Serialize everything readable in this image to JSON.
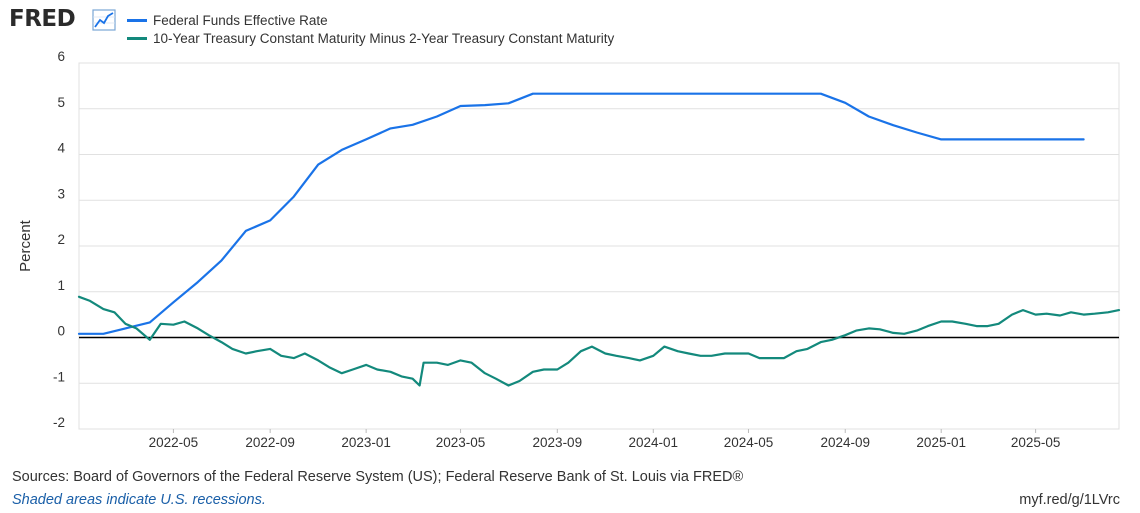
{
  "header": {
    "logo_text": "FRED",
    "logo_icon": "line-chart-icon"
  },
  "legend": [
    {
      "label": "Federal Funds Effective Rate",
      "color": "#1a73e8"
    },
    {
      "label": "10-Year Treasury Constant Maturity Minus 2-Year Treasury Constant Maturity",
      "color": "#13897c"
    }
  ],
  "chart_data": {
    "type": "line",
    "title": "",
    "xlabel": "",
    "ylabel": "Percent",
    "ylim": [
      -2,
      6
    ],
    "yticks": [
      -2,
      -1,
      0,
      1,
      2,
      3,
      4,
      5,
      6
    ],
    "xlim": [
      "2022-01-01",
      "2025-08-15"
    ],
    "xtick_labels": [
      "2022-05",
      "2022-09",
      "2023-01",
      "2023-05",
      "2023-09",
      "2024-01",
      "2024-05",
      "2024-09",
      "2025-01",
      "2025-05"
    ],
    "grid": true,
    "zero_line": true,
    "series": [
      {
        "name": "Federal Funds Effective Rate",
        "color": "#1a73e8",
        "x": [
          "2022-01",
          "2022-02",
          "2022-03",
          "2022-04",
          "2022-05",
          "2022-06",
          "2022-07",
          "2022-08",
          "2022-09",
          "2022-10",
          "2022-11",
          "2022-12",
          "2023-01",
          "2023-02",
          "2023-03",
          "2023-04",
          "2023-05",
          "2023-06",
          "2023-07",
          "2023-08",
          "2023-09",
          "2023-10",
          "2023-11",
          "2023-12",
          "2024-01",
          "2024-02",
          "2024-03",
          "2024-04",
          "2024-05",
          "2024-06",
          "2024-07",
          "2024-08",
          "2024-09",
          "2024-10",
          "2024-11",
          "2024-12",
          "2025-01",
          "2025-02",
          "2025-03",
          "2025-04",
          "2025-05",
          "2025-06",
          "2025-07"
        ],
        "values": [
          0.08,
          0.08,
          0.2,
          0.33,
          0.77,
          1.21,
          1.68,
          2.33,
          2.56,
          3.08,
          3.78,
          4.1,
          4.33,
          4.57,
          4.65,
          4.83,
          5.06,
          5.08,
          5.12,
          5.33,
          5.33,
          5.33,
          5.33,
          5.33,
          5.33,
          5.33,
          5.33,
          5.33,
          5.33,
          5.33,
          5.33,
          5.33,
          5.13,
          4.83,
          4.64,
          4.48,
          4.33,
          4.33,
          4.33,
          4.33,
          4.33,
          4.33,
          4.33
        ]
      },
      {
        "name": "10-Year Treasury Constant Maturity Minus 2-Year Treasury Constant Maturity",
        "color": "#13897c",
        "x": [
          "2022-01-01",
          "2022-01-15",
          "2022-02-01",
          "2022-02-15",
          "2022-03-01",
          "2022-03-15",
          "2022-04-01",
          "2022-04-15",
          "2022-05-01",
          "2022-05-15",
          "2022-06-01",
          "2022-06-15",
          "2022-07-01",
          "2022-07-15",
          "2022-08-01",
          "2022-08-15",
          "2022-09-01",
          "2022-09-15",
          "2022-10-01",
          "2022-10-15",
          "2022-11-01",
          "2022-11-15",
          "2022-12-01",
          "2022-12-15",
          "2023-01-01",
          "2023-01-15",
          "2023-02-01",
          "2023-02-15",
          "2023-03-01",
          "2023-03-10",
          "2023-03-15",
          "2023-04-01",
          "2023-04-15",
          "2023-05-01",
          "2023-05-15",
          "2023-06-01",
          "2023-06-15",
          "2023-07-01",
          "2023-07-15",
          "2023-08-01",
          "2023-08-15",
          "2023-09-01",
          "2023-09-15",
          "2023-10-01",
          "2023-10-15",
          "2023-11-01",
          "2023-11-15",
          "2023-12-01",
          "2023-12-15",
          "2024-01-01",
          "2024-01-15",
          "2024-02-01",
          "2024-02-15",
          "2024-03-01",
          "2024-03-15",
          "2024-04-01",
          "2024-04-15",
          "2024-05-01",
          "2024-05-15",
          "2024-06-01",
          "2024-06-15",
          "2024-07-01",
          "2024-07-15",
          "2024-08-01",
          "2024-08-15",
          "2024-09-01",
          "2024-09-15",
          "2024-10-01",
          "2024-10-15",
          "2024-11-01",
          "2024-11-15",
          "2024-12-01",
          "2024-12-15",
          "2025-01-01",
          "2025-01-15",
          "2025-02-01",
          "2025-02-15",
          "2025-03-01",
          "2025-03-15",
          "2025-04-01",
          "2025-04-15",
          "2025-05-01",
          "2025-05-15",
          "2025-06-01",
          "2025-06-15",
          "2025-07-01",
          "2025-07-15",
          "2025-08-01",
          "2025-08-15"
        ],
        "values": [
          0.89,
          0.8,
          0.62,
          0.55,
          0.3,
          0.2,
          -0.05,
          0.3,
          0.28,
          0.35,
          0.2,
          0.05,
          -0.1,
          -0.25,
          -0.35,
          -0.3,
          -0.25,
          -0.4,
          -0.45,
          -0.35,
          -0.5,
          -0.65,
          -0.78,
          -0.7,
          -0.6,
          -0.7,
          -0.75,
          -0.85,
          -0.9,
          -1.05,
          -0.55,
          -0.55,
          -0.6,
          -0.5,
          -0.55,
          -0.78,
          -0.9,
          -1.05,
          -0.95,
          -0.75,
          -0.7,
          -0.7,
          -0.55,
          -0.3,
          -0.2,
          -0.35,
          -0.4,
          -0.45,
          -0.5,
          -0.4,
          -0.2,
          -0.3,
          -0.35,
          -0.4,
          -0.4,
          -0.35,
          -0.35,
          -0.35,
          -0.45,
          -0.45,
          -0.45,
          -0.3,
          -0.25,
          -0.1,
          -0.05,
          0.05,
          0.15,
          0.2,
          0.18,
          0.1,
          0.08,
          0.15,
          0.25,
          0.35,
          0.35,
          0.3,
          0.25,
          0.25,
          0.3,
          0.5,
          0.6,
          0.5,
          0.52,
          0.48,
          0.55,
          0.5,
          0.52,
          0.55,
          0.6
        ]
      }
    ]
  },
  "footer": {
    "sources": "Sources: Board of Governors of the Federal Reserve System (US); Federal Reserve Bank of St. Louis via FRED®",
    "note": "Shaded areas indicate U.S. recessions.",
    "link": "myf.red/g/1LVrc"
  }
}
